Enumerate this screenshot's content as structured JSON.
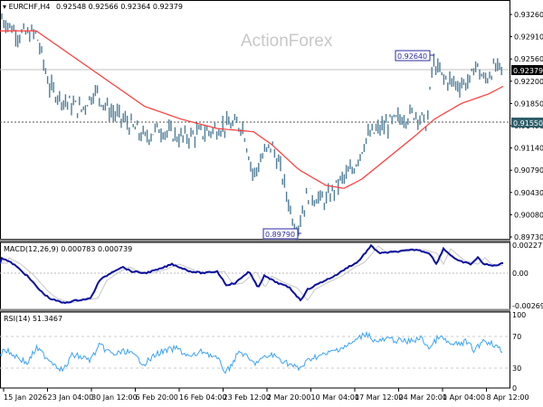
{
  "header": {
    "symbol_label": "EURCHF,H4",
    "ohlc": "0.92548 0.92566 0.92364 0.92379",
    "macd_label": "MACD(12,26,9) 0.000783 0.000739",
    "rsi_label": "RSI(14) 51.3467"
  },
  "watermark": "ActionForex",
  "colors": {
    "bars": "#4f7d98",
    "ma": "#ff3a3a",
    "macd": "#0a0fa0",
    "macd_signal": "#c8c8c8",
    "rsi": "#3fa4f5",
    "price_tag_bg": "#000000",
    "level_tag_bg": "#2f5f6a",
    "annotation": "#2b2ba0"
  },
  "chart_data": [
    {
      "type": "line",
      "title": "EURCHF,H4",
      "subtitle": "0.92548 0.92566 0.92364 0.92379",
      "series": [
        {
          "name": "EURCHF H4 price (OHLC bars, approx closes)",
          "x": [
            "15 Jan 2026",
            "23 Jan 04:00",
            "30 Jan 12:00",
            "6 Feb 20:00",
            "16 Feb 04:00",
            "23 Feb 12:00",
            "2 Mar 20:00",
            "10 Mar 04:00",
            "17 Mar 12:00",
            "24 Mar 20:00",
            "1 Apr 04:00",
            "8 Apr 12:00"
          ],
          "values": [
            0.932,
            0.9205,
            0.918,
            0.9125,
            0.914,
            0.915,
            0.908,
            0.903,
            0.91,
            0.917,
            0.9215,
            0.9238
          ]
        },
        {
          "name": "Moving Average",
          "values": [
            0.93,
            0.924,
            0.9195,
            0.916,
            0.914,
            0.9135,
            0.9105,
            0.905,
            0.906,
            0.912,
            0.917,
            0.921
          ]
        }
      ],
      "annotations": [
        {
          "label": "0.92640",
          "type": "high"
        },
        {
          "label": "0.89790",
          "type": "low"
        },
        {
          "label": "0.91550",
          "type": "horizontal-level"
        },
        {
          "label": "0.92379",
          "type": "current-price"
        }
      ],
      "yticks": [
        "0.93260",
        "0.92910",
        "0.92560",
        "0.92200",
        "0.91850",
        "0.91490",
        "0.91140",
        "0.90790",
        "0.90430",
        "0.90080",
        "0.89730"
      ],
      "ylim": [
        0.8973,
        0.9345
      ],
      "grid": false
    },
    {
      "type": "line",
      "title": "MACD(12,26,9) 0.000783 0.000739",
      "series": [
        {
          "name": "MACD",
          "values": [
            0.0005,
            -0.001,
            -0.002,
            -0.0005,
            -0.0003,
            0.0002,
            -0.001,
            -0.002,
            0.0005,
            0.0012,
            0.002,
            0.0008
          ]
        },
        {
          "name": "Signal",
          "values": [
            0.0004,
            -0.0008,
            -0.0018,
            -0.0007,
            -0.0003,
            0.0001,
            -0.0008,
            -0.0017,
            0.0003,
            0.001,
            0.0018,
            0.0007
          ]
        }
      ],
      "yticks": [
        "0.002277",
        "0.00",
        "-0.002693"
      ],
      "ylim": [
        -0.002693,
        0.002277
      ]
    },
    {
      "type": "line",
      "title": "RSI(14) 51.3467",
      "series": [
        {
          "name": "RSI(14)",
          "values": [
            50,
            38,
            55,
            48,
            52,
            50,
            40,
            42,
            62,
            66,
            58,
            51.35
          ]
        }
      ],
      "yticks": [
        "100",
        "70",
        "30",
        "0"
      ],
      "ylim": [
        0,
        100
      ],
      "levels": [
        70,
        30
      ]
    }
  ],
  "x_axis": {
    "labels": [
      "15 Jan 2026",
      "23 Jan 04:00",
      "30 Jan 12:00",
      "6 Feb 20:00",
      "16 Feb 04:00",
      "23 Feb 12:00",
      "2 Mar 20:00",
      "10 Mar 04:00",
      "17 Mar 12:00",
      "24 Mar 20:00",
      "1 Apr 04:00",
      "8 Apr 12:00"
    ]
  },
  "y_axis_main": {
    "ticks": [
      "0.93260",
      "0.92910",
      "0.92560",
      "0.92200",
      "0.91850",
      "0.91490",
      "0.91140",
      "0.90790",
      "0.90430",
      "0.90080",
      "0.89730"
    ],
    "current_price": "0.92379",
    "level_price": "0.91550"
  },
  "annotations": {
    "high": "0.92640",
    "low": "0.89790"
  },
  "macd_axis": {
    "ticks": [
      "0.002277",
      "0.00",
      "-0.002693"
    ]
  },
  "rsi_axis": {
    "ticks": [
      "100",
      "70",
      "30",
      "0"
    ]
  }
}
